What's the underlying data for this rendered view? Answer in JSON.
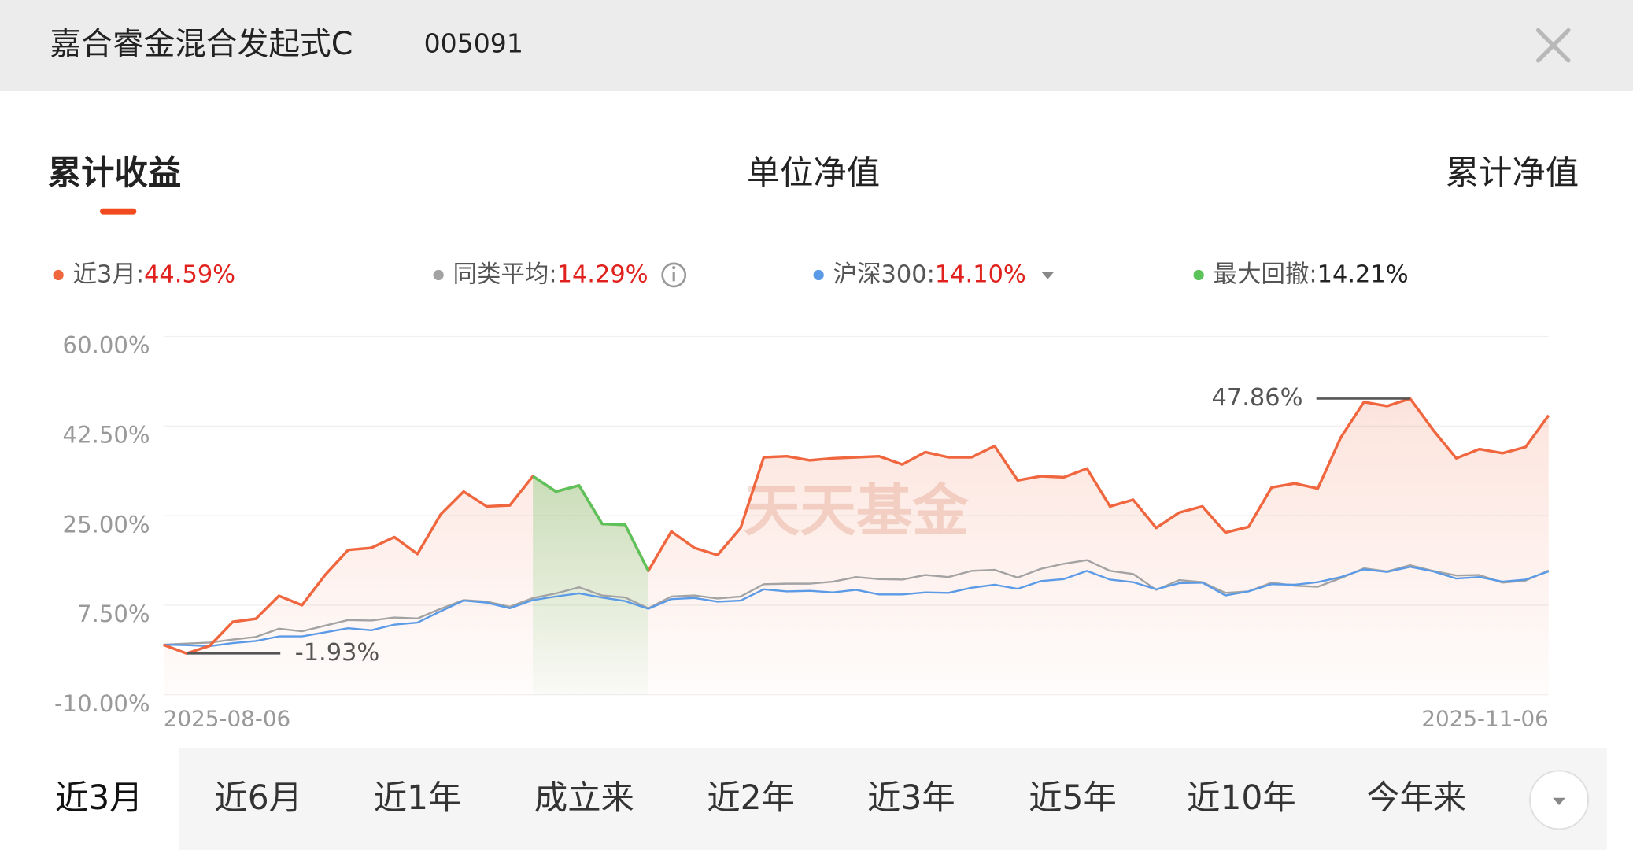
{
  "header": {
    "title": "嘉合睿金混合发起式C",
    "code": "005091"
  },
  "tabs": [
    "累计收益",
    "单位净值",
    "累计净值"
  ],
  "ranges": [
    "近3月",
    "近6月",
    "近1年",
    "成立来",
    "近2年",
    "近3年",
    "近5年",
    "近10年",
    "今年来"
  ],
  "chart_data": {
    "type": "line",
    "categories": [
      "2025-08-06",
      null,
      null,
      null,
      null,
      null,
      null,
      null,
      null,
      null,
      null,
      null,
      null,
      null,
      null,
      null,
      null,
      null,
      null,
      null,
      null,
      null,
      null,
      null,
      null,
      null,
      null,
      null,
      null,
      null,
      null,
      null,
      null,
      null,
      null,
      null,
      null,
      null,
      null,
      null,
      null,
      null,
      null,
      null,
      null,
      null,
      null,
      null,
      null,
      null,
      null,
      null,
      null,
      null,
      null,
      null,
      null,
      null,
      null,
      null,
      "2025-11-06"
    ],
    "legend_separator": ":",
    "series": [
      {
        "name": "近3月",
        "color": "#f0673f",
        "legend_value": {
          "value": 44.59,
          "label": "44.59%"
        },
        "legend_value_color": "#e0211d",
        "values": [
          -0.24,
          -1.93,
          -0.44,
          4.24,
          4.85,
          9.33,
          7.5,
          13.4,
          18.3,
          18.7,
          20.8,
          17.5,
          25.2,
          29.7,
          26.8,
          27.0,
          32.7,
          29.7,
          30.9,
          23.4,
          23.2,
          14.2,
          21.9,
          18.7,
          17.3,
          22.6,
          36.4,
          36.6,
          35.8,
          36.2,
          36.4,
          36.6,
          35.0,
          37.4,
          36.4,
          36.4,
          38.6,
          31.9,
          32.7,
          32.5,
          34.2,
          26.8,
          28.1,
          22.6,
          25.6,
          26.8,
          21.7,
          22.8,
          30.5,
          31.3,
          30.3,
          40.3,
          47.2,
          46.4,
          47.86,
          41.7,
          36.2,
          38.0,
          37.2,
          38.4,
          44.59
        ]
      },
      {
        "name": "同类平均",
        "color": "#a3a3a3",
        "legend_value": {
          "value": 14.29,
          "label": "14.29%"
        },
        "legend_value_color": "#e0211d",
        "values": [
          -0.2,
          0.0,
          0.2,
          0.8,
          1.3,
          2.9,
          2.4,
          3.5,
          4.6,
          4.5,
          5.1,
          4.9,
          6.8,
          8.5,
          8.2,
          7.2,
          8.9,
          9.8,
          11.0,
          9.4,
          9.0,
          6.9,
          9.2,
          9.4,
          8.8,
          9.2,
          11.6,
          11.7,
          11.7,
          12.1,
          13.0,
          12.6,
          12.5,
          13.4,
          13.0,
          14.2,
          14.4,
          12.9,
          14.6,
          15.6,
          16.3,
          14.2,
          13.6,
          10.5,
          12.4,
          12.0,
          9.9,
          10.2,
          11.9,
          11.3,
          11.1,
          12.8,
          14.7,
          14.1,
          15.3,
          14.2,
          13.3,
          13.4,
          11.9,
          12.3,
          14.29
        ]
      },
      {
        "name": "沪深300",
        "color": "#5b9ae6",
        "legend_value": {
          "value": 14.1,
          "label": "14.10%"
        },
        "legend_value_color": "#e0211d",
        "values": [
          -0.2,
          -0.3,
          -0.5,
          0.1,
          0.5,
          1.4,
          1.4,
          2.2,
          3.0,
          2.6,
          3.7,
          4.1,
          6.3,
          8.4,
          8.0,
          6.9,
          8.5,
          9.2,
          9.8,
          9.0,
          8.3,
          6.8,
          8.7,
          8.9,
          8.2,
          8.4,
          10.6,
          10.2,
          10.3,
          10.0,
          10.5,
          9.6,
          9.6,
          10.0,
          9.9,
          10.9,
          11.5,
          10.7,
          12.2,
          12.6,
          14.2,
          12.5,
          12.0,
          10.6,
          11.8,
          11.9,
          9.4,
          10.2,
          11.6,
          11.5,
          12.0,
          13.0,
          14.5,
          14.0,
          15.0,
          14.1,
          12.7,
          13.0,
          12.1,
          12.5,
          14.1
        ]
      },
      {
        "name": "最大回撤",
        "color": "#5cc35a",
        "legend_value": {
          "value": 14.21,
          "label": "14.21%"
        },
        "legend_value_color": "#222222",
        "values": [
          null,
          null,
          null,
          null,
          null,
          null,
          null,
          null,
          null,
          null,
          null,
          null,
          null,
          null,
          null,
          null,
          32.7,
          29.7,
          30.9,
          23.4,
          23.2,
          14.2,
          null,
          null,
          null,
          null,
          null,
          null,
          null,
          null,
          null,
          null,
          null,
          null,
          null,
          null,
          null,
          null,
          null,
          null,
          null,
          null,
          null,
          null,
          null,
          null,
          null,
          null,
          null,
          null,
          null,
          null,
          null,
          null,
          null,
          null,
          null,
          null,
          null,
          null,
          null
        ]
      }
    ],
    "ylim": [
      -10,
      60
    ],
    "yticks": [
      {
        "value": 60,
        "label": "60.00%"
      },
      {
        "value": 42.5,
        "label": "42.50%"
      },
      {
        "value": 25,
        "label": "25.00%"
      },
      {
        "value": 7.5,
        "label": "7.50%"
      },
      {
        "value": -10,
        "label": "-10.00%"
      }
    ],
    "grid": true,
    "annotations": [
      {
        "value": 47.86,
        "label": "47.86%"
      },
      {
        "value": -1.93,
        "label": "-1.93%"
      }
    ],
    "watermark": "天天基金"
  }
}
